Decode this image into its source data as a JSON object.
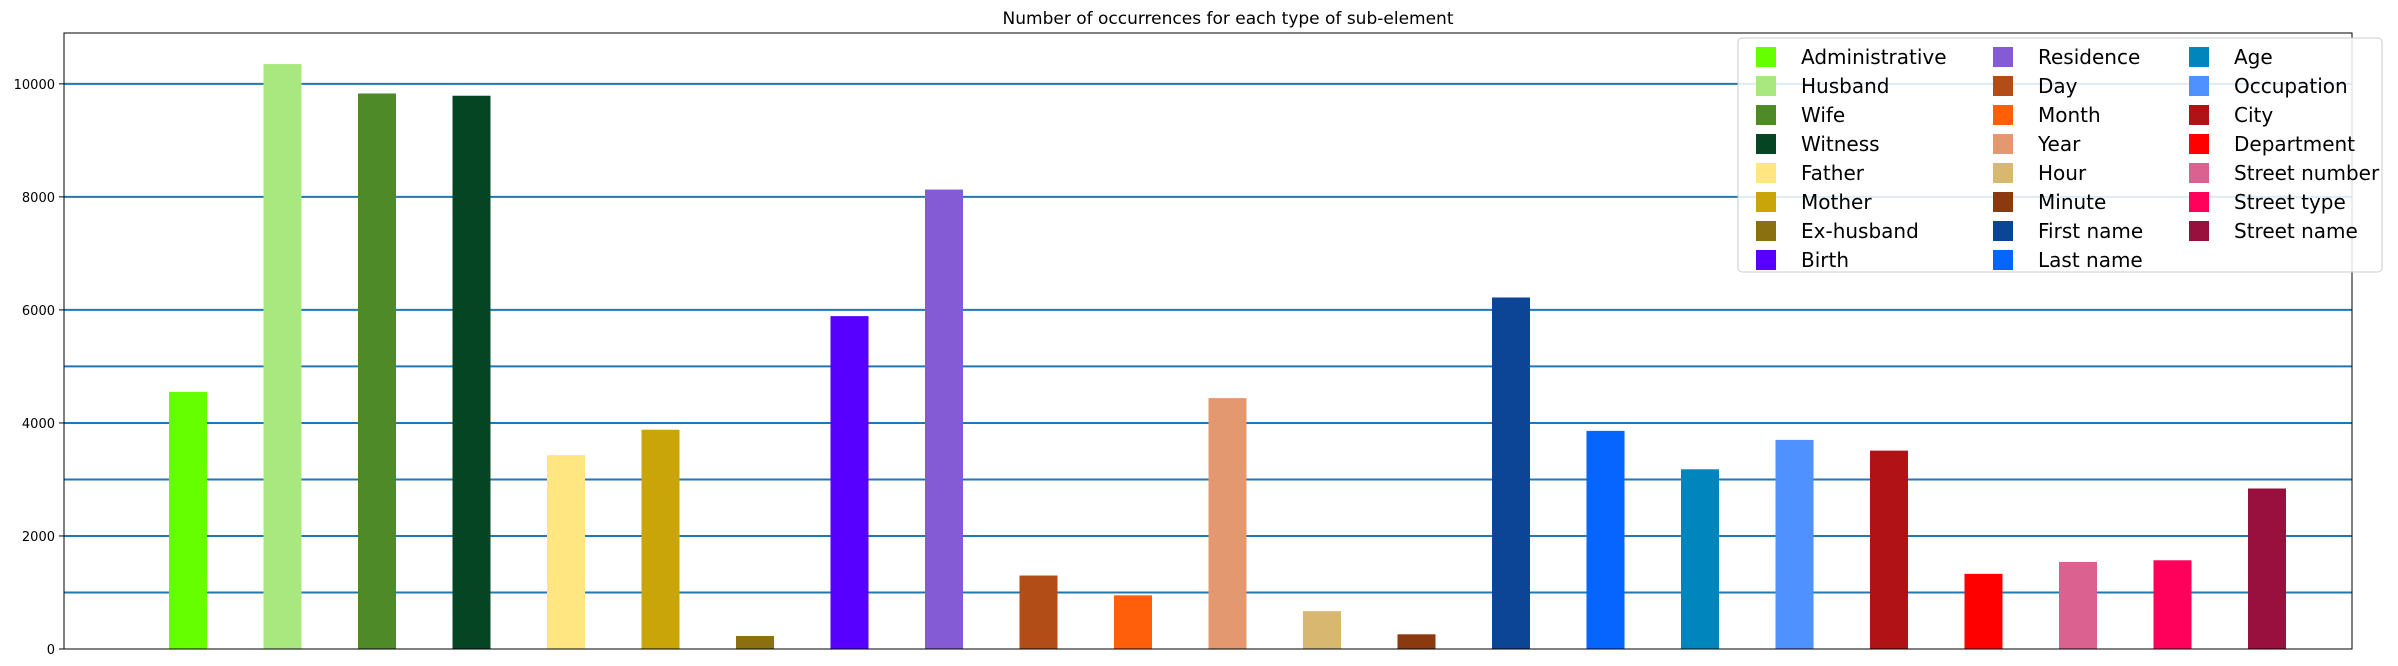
{
  "chart_data": {
    "type": "bar",
    "title": "Number of occurrences for each type of sub-element",
    "xlabel": "",
    "ylabel": "",
    "ylim": [
      0,
      10900
    ],
    "y_ticks": [
      0,
      2000,
      4000,
      6000,
      8000,
      10000
    ],
    "y_tick_labels": [
      "0",
      "2000",
      "4000",
      "6000",
      "8000",
      "10000"
    ],
    "horizontal_reference_lines": [
      1000,
      2000,
      3000,
      4000,
      5000,
      6000,
      8000,
      10000
    ],
    "reference_line_color": "#1f77b4",
    "legend_position": "top-right",
    "legend_columns": 3,
    "categories": [
      "Administrative",
      "Husband",
      "Wife",
      "Witness",
      "Father",
      "Mother",
      "Ex-husband",
      "Birth",
      "Residence",
      "Day",
      "Month",
      "Year",
      "Hour",
      "Minute",
      "First name",
      "Last name",
      "Age",
      "Occupation",
      "City",
      "Department",
      "Street number",
      "Street type",
      "Street name"
    ],
    "values": [
      4550,
      10350,
      9830,
      9790,
      3430,
      3880,
      230,
      5890,
      8130,
      1300,
      950,
      4440,
      670,
      260,
      6220,
      3860,
      3180,
      3700,
      3510,
      1330,
      1540,
      1570,
      2840
    ],
    "colors": [
      "#66ff00",
      "#a8e87f",
      "#4f8a29",
      "#064524",
      "#ffe680",
      "#c9a509",
      "#8b700f",
      "#5700ff",
      "#845ad5",
      "#b34d17",
      "#ff5e0a",
      "#e39870",
      "#d8b870",
      "#8a3a0e",
      "#0d4596",
      "#0664ff",
      "#0086bd",
      "#4f91ff",
      "#b11215",
      "#ff0000",
      "#db6290",
      "#ff005a",
      "#990f3d"
    ]
  }
}
